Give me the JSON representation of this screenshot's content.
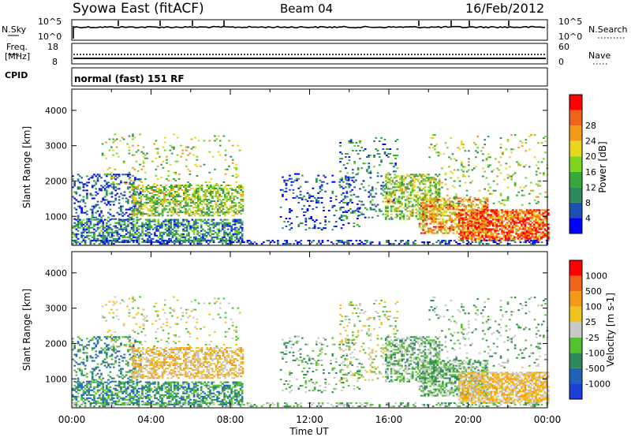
{
  "header": {
    "title": "Syowa East (fitACF)",
    "beam": "Beam 04",
    "date": "16/Feb/2012"
  },
  "status_panels": {
    "nsky_label": "N.Sky",
    "nsky_ticks": [
      "10^5",
      "10^0"
    ],
    "nsearch_label": "N.Search",
    "nsearch_ticks": [
      "10^5",
      "10^0"
    ],
    "freq_label": "Freq.",
    "freq_unit": "[MHz]",
    "freq_ticks": [
      "18",
      "8"
    ],
    "nave_label": "Nave",
    "nave_ticks": [
      "60",
      "0"
    ],
    "cpid_label": "CPID",
    "cpid_value": "normal (fast) 151 RF"
  },
  "chart_data": [
    {
      "type": "heatmap",
      "title": "",
      "xlabel": "Time UT",
      "ylabel": "Slant Range [km]",
      "xlim": [
        0,
        24
      ],
      "ylim": [
        180,
        4600
      ],
      "x_ticks": [
        "00:00",
        "04:00",
        "08:00",
        "12:00",
        "16:00",
        "20:00",
        "00:00"
      ],
      "y_ticks": [
        "1000",
        "2000",
        "3000",
        "4000"
      ],
      "y_tick_values": [
        1000,
        2000,
        3000,
        4000
      ],
      "colorbar": {
        "label": "Power [dB]",
        "ticks": [
          "4",
          "8",
          "12",
          "16",
          "20",
          "24",
          "28"
        ],
        "colors": [
          "#0000ff",
          "#1f4fb4",
          "#2e8a5c",
          "#35a83a",
          "#7dd51e",
          "#e8d51c",
          "#f59a16",
          "#f0641a",
          "#ff0000"
        ]
      }
    },
    {
      "type": "heatmap",
      "title": "",
      "xlabel": "Time UT",
      "ylabel": "Slant Range [km]",
      "xlim": [
        0,
        24
      ],
      "ylim": [
        180,
        4600
      ],
      "x_ticks": [
        "00:00",
        "04:00",
        "08:00",
        "12:00",
        "16:00",
        "20:00",
        "00:00"
      ],
      "y_ticks": [
        "1000",
        "2000",
        "3000",
        "4000"
      ],
      "y_tick_values": [
        1000,
        2000,
        3000,
        4000
      ],
      "colorbar": {
        "label": "Velocity [m s-1]",
        "ticks": [
          "1000",
          "500",
          "100",
          "25",
          "-25",
          "-100",
          "-500",
          "-1000"
        ],
        "colors": [
          "#1c3fd8",
          "#1f62b8",
          "#2e8a5c",
          "#53c22e",
          "#c8c8c8",
          "#f0c21e",
          "#f59a16",
          "#f0641a",
          "#ff0000"
        ]
      }
    }
  ]
}
